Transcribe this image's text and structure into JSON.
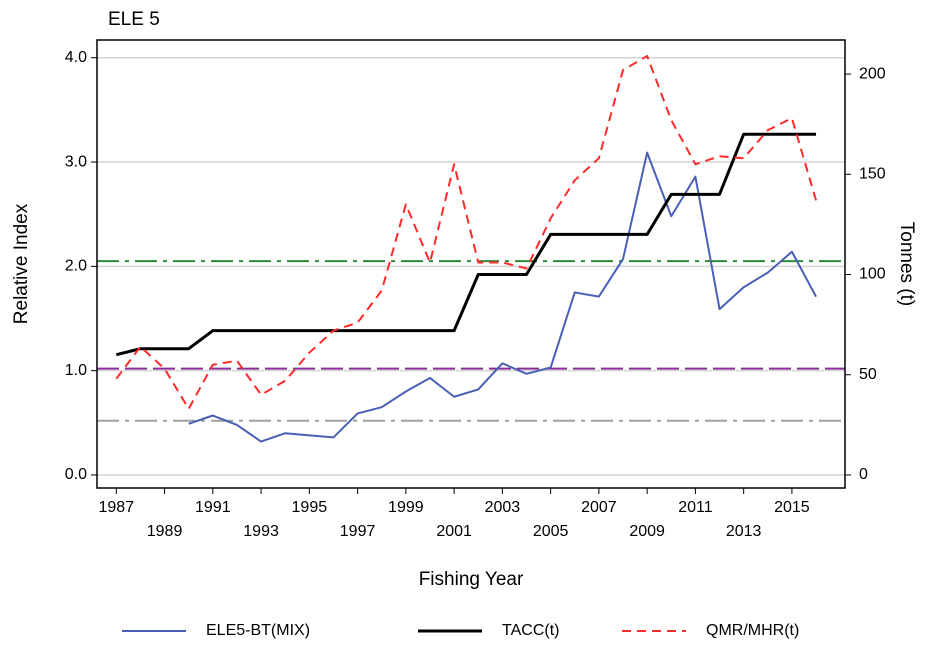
{
  "chart_data": {
    "type": "line",
    "title": "ELE 5",
    "x_label": "Fishing Year",
    "y_label": "Relative Index",
    "y2_label": "Tonnes (t)",
    "x": [
      1987,
      1988,
      1989,
      1990,
      1991,
      1992,
      1993,
      1994,
      1995,
      1996,
      1997,
      1998,
      1999,
      2000,
      2001,
      2002,
      2003,
      2004,
      2005,
      2006,
      2007,
      2008,
      2009,
      2010,
      2011,
      2012,
      2013,
      2014,
      2015,
      2016
    ],
    "xlim": [
      1986.2,
      2017.2
    ],
    "xticks": [
      1987,
      1989,
      1991,
      1993,
      1995,
      1997,
      1999,
      2001,
      2003,
      2005,
      2007,
      2009,
      2011,
      2013,
      2015
    ],
    "ylim": [
      -0.125,
      4.17
    ],
    "yticks": [
      {
        "value": 0,
        "label": "0.0"
      },
      {
        "value": 1,
        "label": "1.0"
      },
      {
        "value": 2,
        "label": "2.0"
      },
      {
        "value": 3,
        "label": "3.0"
      },
      {
        "value": 4,
        "label": "4.0"
      }
    ],
    "y2lim": [
      -6.5,
      217
    ],
    "y2ticks": [
      0,
      50,
      100,
      150,
      200
    ],
    "grid": true,
    "reference_lines": [
      {
        "value": 2.05,
        "color": "#2e8b3a",
        "dash": "22 6 4 6"
      },
      {
        "value": 1.02,
        "color": "#8a2c9a",
        "dash": "22 6"
      },
      {
        "value": 0.52,
        "color": "#a0a0a0",
        "dash": "22 6 4 6"
      }
    ],
    "series": [
      {
        "name": "ELE5-BT(MIX)",
        "color": "#4a5fb5",
        "dash": "none",
        "values": [
          null,
          null,
          null,
          0.49,
          0.57,
          0.48,
          0.32,
          0.4,
          0.38,
          0.36,
          0.59,
          0.65,
          0.8,
          0.93,
          0.75,
          0.82,
          1.07,
          0.97,
          1.03,
          1.75,
          1.71,
          2.07,
          3.09,
          2.48,
          2.86,
          1.59,
          1.8,
          1.94,
          2.14,
          1.71
        ]
      },
      {
        "name": "TACC(t)",
        "color": "#000000",
        "dash": "none",
        "axis": "y2",
        "values": [
          60,
          63,
          63,
          63,
          72,
          72,
          72,
          72,
          72,
          72,
          72,
          72,
          72,
          72,
          72,
          100,
          100,
          100,
          120,
          120,
          120,
          120,
          120,
          140,
          140,
          140,
          170,
          170,
          170,
          170
        ]
      },
      {
        "name": "QMR/MHR(t)",
        "color": "#ff2a2a",
        "dash": "9 6",
        "axis": "y2",
        "values": [
          48,
          64,
          53,
          33,
          55,
          57,
          40,
          47,
          61,
          72,
          76,
          92,
          135,
          106,
          155,
          106,
          106,
          103,
          128,
          147,
          158,
          202,
          209,
          177,
          155,
          159,
          158,
          172,
          178,
          137
        ]
      }
    ]
  }
}
